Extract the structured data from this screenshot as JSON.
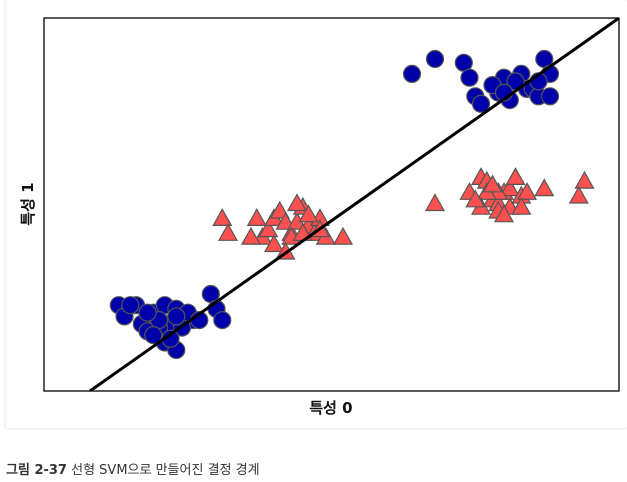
{
  "chart_data": {
    "type": "scatter",
    "xlabel": "특성 0",
    "ylabel": "특성 1",
    "xlim": [
      0,
      100
    ],
    "ylim": [
      0,
      100
    ],
    "ticks": false,
    "decision_boundary": {
      "x": [
        8,
        100
      ],
      "y": [
        0,
        100
      ]
    },
    "series": [
      {
        "marker": "circle",
        "color": "#0000aa",
        "points": [
          [
            13,
            23
          ],
          [
            16,
            23
          ],
          [
            19,
            21
          ],
          [
            21,
            23
          ],
          [
            23,
            22
          ],
          [
            17,
            18
          ],
          [
            22,
            18
          ],
          [
            26,
            19
          ],
          [
            14,
            20
          ],
          [
            20,
            17
          ],
          [
            18,
            16
          ],
          [
            24,
            17
          ],
          [
            21,
            13
          ],
          [
            23,
            11
          ],
          [
            20,
            19
          ],
          [
            25,
            21
          ],
          [
            15,
            23
          ],
          [
            23,
            20
          ],
          [
            29,
            26
          ],
          [
            30,
            22
          ],
          [
            31,
            19
          ],
          [
            19,
            15
          ],
          [
            27,
            19
          ],
          [
            18,
            21
          ],
          [
            22,
            14
          ],
          [
            64,
            85
          ],
          [
            68,
            89
          ],
          [
            73,
            88
          ],
          [
            74,
            84
          ],
          [
            75,
            79
          ],
          [
            80,
            84
          ],
          [
            79,
            80
          ],
          [
            83,
            85
          ],
          [
            84,
            81
          ],
          [
            78,
            82
          ],
          [
            85,
            81
          ],
          [
            86,
            79
          ],
          [
            88,
            79
          ],
          [
            87,
            89
          ],
          [
            88,
            85
          ],
          [
            76,
            77
          ],
          [
            81,
            78
          ],
          [
            82,
            83
          ],
          [
            80,
            80
          ],
          [
            86,
            83
          ]
        ]
      },
      {
        "marker": "triangle",
        "color": "#ff5050",
        "points": [
          [
            31,
            46
          ],
          [
            32,
            42
          ],
          [
            37,
            46
          ],
          [
            38,
            41
          ],
          [
            39,
            43
          ],
          [
            40,
            46
          ],
          [
            41,
            48
          ],
          [
            42,
            45
          ],
          [
            43,
            42
          ],
          [
            44,
            45
          ],
          [
            45,
            49
          ],
          [
            46,
            44
          ],
          [
            47,
            42
          ],
          [
            48,
            46
          ],
          [
            49,
            41
          ],
          [
            52,
            41
          ],
          [
            40,
            39
          ],
          [
            43,
            41
          ],
          [
            45,
            42
          ],
          [
            42,
            37
          ],
          [
            48,
            43
          ],
          [
            36,
            41
          ],
          [
            44,
            50
          ],
          [
            46,
            47
          ],
          [
            68,
            50
          ],
          [
            74,
            53
          ],
          [
            76,
            57
          ],
          [
            77,
            56
          ],
          [
            78,
            51
          ],
          [
            79,
            50
          ],
          [
            80,
            53
          ],
          [
            81,
            54
          ],
          [
            82,
            57
          ],
          [
            79,
            53
          ],
          [
            77,
            53
          ],
          [
            78,
            55
          ],
          [
            76,
            49
          ],
          [
            83,
            52
          ],
          [
            84,
            53
          ],
          [
            87,
            54
          ],
          [
            94,
            56
          ],
          [
            93,
            52
          ],
          [
            81,
            49
          ],
          [
            75,
            51
          ],
          [
            79,
            48
          ],
          [
            83,
            49
          ],
          [
            80,
            47
          ]
        ]
      }
    ]
  },
  "caption": {
    "label": "그림 2-37",
    "text": "선형 SVM으로 만들어진 결정 경계"
  }
}
